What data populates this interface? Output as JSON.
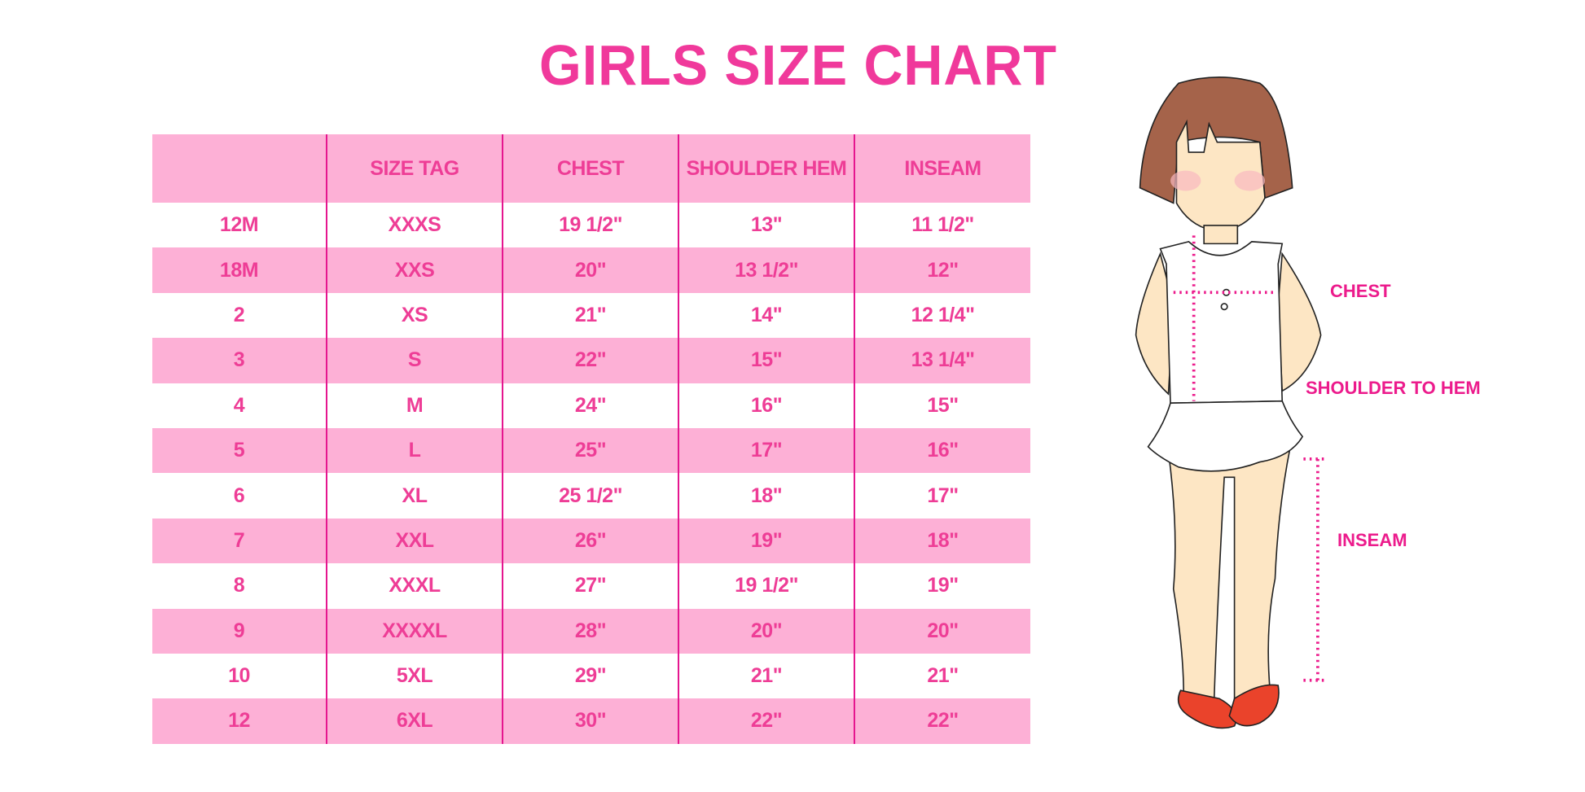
{
  "title": "GIRLS SIZE CHART",
  "table": {
    "headers": [
      "",
      "SIZE TAG",
      "CHEST",
      "SHOULDER HEM",
      "INSEAM"
    ],
    "rows": [
      [
        "12M",
        "XXXS",
        "19 1/2\"",
        "13\"",
        "11 1/2\""
      ],
      [
        "18M",
        "XXS",
        "20\"",
        "13 1/2\"",
        "12\""
      ],
      [
        "2",
        "XS",
        "21\"",
        "14\"",
        "12 1/4\""
      ],
      [
        "3",
        "S",
        "22\"",
        "15\"",
        "13 1/4\""
      ],
      [
        "4",
        "M",
        "24\"",
        "16\"",
        "15\""
      ],
      [
        "5",
        "L",
        "25\"",
        "17\"",
        "16\""
      ],
      [
        "6",
        "XL",
        "25 1/2\"",
        "18\"",
        "17\""
      ],
      [
        "7",
        "XXL",
        "26\"",
        "19\"",
        "18\""
      ],
      [
        "8",
        "XXXL",
        "27\"",
        "19 1/2\"",
        "19\""
      ],
      [
        "9",
        "XXXXL",
        "28\"",
        "20\"",
        "20\""
      ],
      [
        "10",
        "5XL",
        "29\"",
        "21\"",
        "21\""
      ],
      [
        "12",
        "6XL",
        "30\"",
        "22\"",
        "22\""
      ]
    ]
  },
  "figure": {
    "labels": {
      "chest": "CHEST",
      "shoulder": "SHOULDER TO HEM",
      "inseam": "INSEAM"
    }
  },
  "colors": {
    "title": "#f0399b",
    "text": "#ee3d96",
    "row_pink": "#fdb0d6",
    "divider": "#e5168f",
    "label": "#ec1b8c"
  }
}
